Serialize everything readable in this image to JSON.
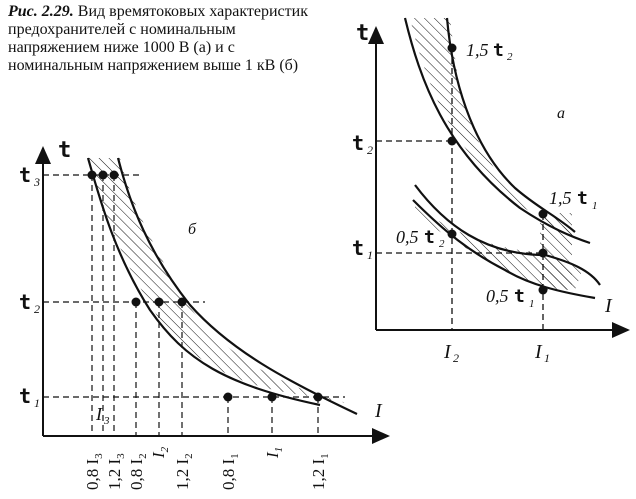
{
  "caption": {
    "label": "Рис. 2.29.",
    "text": " Вид времятоковых характеристик предохранителей с номинальным напряжением ниже 1000 В (а) и с номинальным напряжением выше 1 кВ (б)"
  },
  "panel_a": {
    "letter": "а",
    "axis_t": "t",
    "axis_I": "I",
    "t2": "t",
    "t2_sub": "2",
    "t1": "t",
    "t1_sub": "1",
    "I2": "I",
    "I2_sub": "2",
    "I1": "I",
    "I1_sub": "1",
    "lbl_15t2": "1,5",
    "lbl_15t2_t": "t",
    "lbl_15t2_sub": "2",
    "lbl_15t1": "1,5",
    "lbl_15t1_t": "t",
    "lbl_15t1_sub": "1",
    "lbl_05t2": "0,5",
    "lbl_05t2_t": "t",
    "lbl_05t2_sub": "2",
    "lbl_05t1": "0,5",
    "lbl_05t1_t": "t",
    "lbl_05t1_sub": "1"
  },
  "panel_b": {
    "letter": "б",
    "axis_t": "t",
    "axis_I": "I",
    "t3": "t",
    "t3_sub": "3",
    "t2": "t",
    "t2_sub": "2",
    "t1": "t",
    "t1_sub": "1",
    "I3_label": "I",
    "I3_sub": "3",
    "x_labels": [
      {
        "text": "0,8 I",
        "sub": "3"
      },
      {
        "text": "1,2 I",
        "sub": "3"
      },
      {
        "text": "0,8 I",
        "sub": "2"
      },
      {
        "text": "I",
        "sub": "2"
      },
      {
        "text": "1,2 I",
        "sub": "2"
      },
      {
        "text": "0,8 I",
        "sub": "1"
      },
      {
        "text": "I",
        "sub": "1"
      },
      {
        "text": "1,2 I",
        "sub": "1"
      }
    ]
  }
}
